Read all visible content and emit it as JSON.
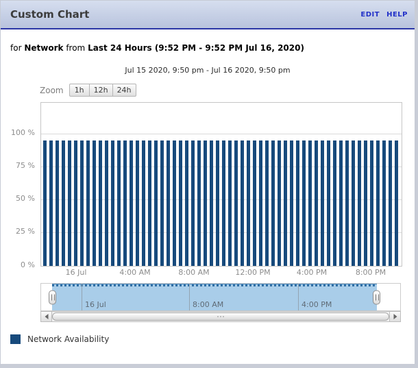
{
  "widget": {
    "title": "Custom Chart",
    "links": {
      "edit": "EDIT",
      "help": "HELP"
    }
  },
  "subtitle": {
    "for": "for",
    "entity": "Network",
    "from": "from",
    "range": "Last 24 Hours (9:52 PM - 9:52 PM Jul 16, 2020)"
  },
  "zoom": {
    "label": "Zoom",
    "buttons": {
      "h1": "1h",
      "h12": "12h",
      "h24": "24h"
    }
  },
  "chart_data": {
    "type": "bar",
    "title": "Jul 15 2020, 9:50 pm - Jul 16 2020, 9:50 pm",
    "x_range": [
      "Jul 15 2020, 9:50 pm",
      "Jul 16 2020, 9:50 pm"
    ],
    "xticks": [
      "16 Jul",
      "4:00 AM",
      "8:00 AM",
      "12:00 PM",
      "4:00 PM",
      "8:00 PM"
    ],
    "yticks": [
      "0 %",
      "25 %",
      "50 %",
      "75 %",
      "100 %"
    ],
    "ylim": [
      0,
      123
    ],
    "grid": true,
    "legend_position": "bottom-left",
    "series": [
      {
        "name": "Network Availability",
        "color": "#174A7C",
        "values": [
          95,
          95,
          95,
          95,
          95,
          95,
          95,
          95,
          95,
          95,
          95,
          95,
          95,
          95,
          95,
          95,
          95,
          95,
          95,
          95,
          95,
          95,
          95,
          95,
          95,
          95,
          95,
          95,
          95,
          95,
          95,
          95,
          95,
          95,
          95,
          95,
          95,
          95,
          95,
          95,
          95,
          95,
          95,
          95,
          95,
          95,
          95,
          95,
          95,
          95,
          95,
          95,
          95,
          95,
          95,
          95,
          95,
          95
        ]
      }
    ]
  },
  "navigator": {
    "labels": [
      "16 Jul",
      "8:00 AM",
      "4:00 PM"
    ],
    "selection_color": "#A9CDE9"
  },
  "legend": {
    "items": [
      {
        "label": "Network Availability",
        "color": "#174A7C"
      }
    ]
  },
  "colors": {
    "bar": "#174A7C",
    "header_border": "#2a35a5",
    "link": "#2231c8"
  }
}
